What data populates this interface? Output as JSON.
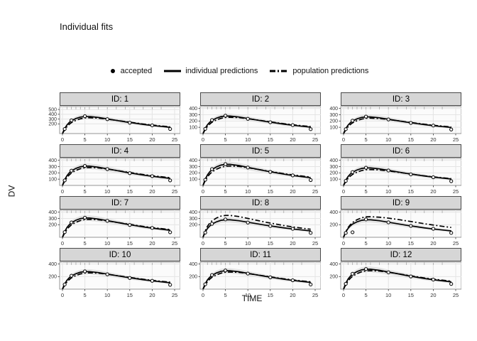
{
  "title": "Individual fits",
  "legend": {
    "accepted": "accepted",
    "individual": "individual predictions",
    "population": "population predictions"
  },
  "axes": {
    "x_label": "TIME",
    "y_label": "DV"
  },
  "colors": {
    "line": "#000000",
    "ribbon": "#dcdcdc",
    "strip_bg": "#d6d6d6",
    "grid": "#e4e4e4",
    "panel_bg": "#fbfbfb",
    "panel_border": "#8a8a8a"
  },
  "chart_data": {
    "type": "line",
    "title": "Individual fits",
    "xlabel": "TIME",
    "ylabel": "DV",
    "xlim": [
      0,
      25
    ],
    "xticks": [
      0,
      5,
      10,
      15,
      20,
      25
    ],
    "grid": true,
    "legend_position": "top",
    "t": [
      0,
      0.5,
      1,
      1.5,
      2,
      3,
      4,
      5,
      6,
      8,
      10,
      12,
      14,
      16,
      18,
      20,
      22,
      24
    ],
    "rug": [
      1,
      2,
      3,
      4,
      5,
      6,
      8,
      10,
      12,
      14,
      16,
      18,
      20,
      22
    ],
    "facets": [
      {
        "label": "ID: 1",
        "ylim": [
          0,
          560
        ],
        "yticks": [
          200,
          300,
          400,
          500
        ],
        "ind": [
          0,
          106,
          179,
          228,
          266,
          312,
          342,
          353,
          353,
          334,
          304,
          274,
          243,
          217,
          190,
          167,
          148,
          129
        ],
        "pop": [
          0,
          79,
          144,
          191,
          227,
          274,
          306,
          324,
          328,
          320,
          299,
          274,
          248,
          223,
          198,
          176,
          158,
          140
        ],
        "obs": [
          [
            0.5,
            95
          ],
          [
            2,
            275
          ],
          [
            5,
            360
          ],
          [
            10,
            298
          ],
          [
            15,
            225
          ],
          [
            20,
            170
          ],
          [
            24,
            95
          ]
        ]
      },
      {
        "label": "ID: 2",
        "ylim": [
          0,
          430
        ],
        "yticks": [
          100,
          200,
          300,
          400
        ],
        "ind": [
          0,
          84,
          141,
          180,
          210,
          246,
          270,
          279,
          279,
          264,
          240,
          216,
          192,
          171,
          150,
          132,
          117,
          102
        ],
        "pop": [
          0,
          63,
          114,
          151,
          180,
          217,
          242,
          257,
          259,
          254,
          237,
          217,
          197,
          177,
          157,
          140,
          125,
          111
        ],
        "obs": [
          [
            0.5,
            75
          ],
          [
            2,
            215
          ],
          [
            5,
            285
          ],
          [
            10,
            235
          ],
          [
            15,
            180
          ],
          [
            20,
            135
          ],
          [
            24,
            70
          ]
        ]
      },
      {
        "label": "ID: 3",
        "ylim": [
          0,
          430
        ],
        "yticks": [
          100,
          200,
          300,
          400
        ],
        "ind": [
          0,
          80,
          134,
          171,
          200,
          234,
          257,
          265,
          265,
          251,
          228,
          205,
          182,
          162,
          143,
          125,
          111,
          97
        ],
        "pop": [
          0,
          59,
          108,
          143,
          170,
          205,
          230,
          243,
          246,
          240,
          224,
          205,
          186,
          167,
          149,
          132,
          119,
          105
        ],
        "obs": [
          [
            0.5,
            70
          ],
          [
            2,
            205
          ],
          [
            5,
            270
          ],
          [
            10,
            225
          ],
          [
            15,
            170
          ],
          [
            20,
            128
          ],
          [
            24,
            65
          ]
        ]
      },
      {
        "label": "ID: 4",
        "ylim": [
          0,
          430
        ],
        "yticks": [
          100,
          200,
          300,
          400
        ],
        "ind": [
          0,
          92,
          155,
          198,
          231,
          271,
          297,
          307,
          307,
          290,
          264,
          238,
          211,
          188,
          165,
          145,
          129,
          112
        ],
        "pop": [
          0,
          69,
          126,
          166,
          198,
          239,
          267,
          283,
          285,
          279,
          261,
          239,
          217,
          195,
          173,
          154,
          139,
          123
        ],
        "obs": [
          [
            0.5,
            80
          ],
          [
            2,
            235
          ],
          [
            5,
            310
          ],
          [
            10,
            260
          ],
          [
            15,
            195
          ],
          [
            20,
            148
          ],
          [
            24,
            80
          ]
        ]
      },
      {
        "label": "ID: 5",
        "ylim": [
          0,
          430
        ],
        "yticks": [
          100,
          200,
          300,
          400
        ],
        "ind": [
          0,
          101,
          169,
          216,
          252,
          295,
          324,
          335,
          335,
          317,
          288,
          259,
          230,
          205,
          180,
          158,
          140,
          122
        ],
        "pop": [
          0,
          75,
          136,
          180,
          214,
          258,
          289,
          306,
          309,
          303,
          282,
          258,
          235,
          211,
          187,
          167,
          150,
          133
        ],
        "obs": [
          [
            0.5,
            90
          ],
          [
            2,
            260
          ],
          [
            5,
            340
          ],
          [
            10,
            285
          ],
          [
            15,
            215
          ],
          [
            20,
            160
          ],
          [
            24,
            85
          ]
        ]
      },
      {
        "label": "ID: 6",
        "ylim": [
          0,
          430
        ],
        "yticks": [
          100,
          200,
          300,
          400
        ],
        "ind": [
          0,
          84,
          141,
          180,
          210,
          246,
          270,
          279,
          279,
          264,
          240,
          216,
          192,
          171,
          150,
          132,
          117,
          102
        ],
        "pop": [
          0,
          61,
          111,
          147,
          175,
          211,
          236,
          250,
          253,
          247,
          231,
          211,
          192,
          172,
          153,
          136,
          122,
          108
        ],
        "obs": [
          [
            0.5,
            72
          ],
          [
            2,
            212
          ],
          [
            5,
            282
          ],
          [
            10,
            238
          ],
          [
            15,
            176
          ],
          [
            20,
            130
          ],
          [
            24,
            68
          ]
        ]
      },
      {
        "label": "ID: 7",
        "ylim": [
          0,
          430
        ],
        "yticks": [
          200,
          300,
          400
        ],
        "ind": [
          0,
          92,
          156,
          198,
          231,
          272,
          298,
          307,
          307,
          291,
          265,
          239,
          212,
          189,
          165,
          146,
          129,
          112
        ],
        "pop": [
          0,
          69,
          126,
          166,
          198,
          239,
          267,
          282,
          285,
          279,
          261,
          239,
          217,
          195,
          173,
          154,
          139,
          123
        ],
        "obs": [
          [
            0.5,
            82
          ],
          [
            2,
            237
          ],
          [
            5,
            312
          ],
          [
            10,
            262
          ],
          [
            15,
            196
          ],
          [
            20,
            149
          ],
          [
            24,
            80
          ]
        ]
      },
      {
        "label": "ID: 8",
        "ylim": [
          0,
          430
        ],
        "yticks": [
          200,
          300,
          400
        ],
        "ind": [
          0,
          84,
          141,
          180,
          210,
          246,
          270,
          279,
          279,
          264,
          240,
          216,
          192,
          171,
          150,
          132,
          117,
          102
        ],
        "pop": [
          0,
          105,
          176,
          225,
          262,
          307,
          337,
          348,
          348,
          330,
          300,
          270,
          240,
          214,
          187,
          165,
          146,
          128
        ],
        "obs": [
          [
            0.5,
            75
          ],
          [
            2,
            215
          ],
          [
            5,
            285
          ],
          [
            10,
            235
          ],
          [
            15,
            180
          ],
          [
            20,
            135
          ],
          [
            24,
            70
          ]
        ]
      },
      {
        "label": "ID: 9",
        "ylim": [
          0,
          430
        ],
        "yticks": [
          200,
          400
        ],
        "ind": [
          0,
          84,
          141,
          180,
          210,
          246,
          270,
          279,
          279,
          264,
          240,
          216,
          192,
          171,
          150,
          132,
          117,
          102
        ],
        "pop": [
          0,
          90,
          155,
          200,
          235,
          280,
          310,
          325,
          328,
          320,
          305,
          285,
          262,
          240,
          216,
          195,
          175,
          156
        ],
        "obs": [
          [
            0.5,
            70
          ],
          [
            2,
            80
          ],
          [
            5,
            285
          ],
          [
            10,
            238
          ],
          [
            15,
            182
          ],
          [
            20,
            136
          ],
          [
            24,
            70
          ]
        ]
      },
      {
        "label": "ID: 10",
        "ylim": [
          0,
          430
        ],
        "yticks": [
          200,
          400
        ],
        "ind": [
          0,
          84,
          141,
          180,
          210,
          246,
          270,
          279,
          279,
          264,
          240,
          216,
          192,
          171,
          150,
          132,
          117,
          102
        ],
        "pop": [
          0,
          63,
          114,
          151,
          180,
          217,
          242,
          257,
          259,
          254,
          237,
          217,
          197,
          177,
          157,
          140,
          125,
          111
        ],
        "obs": [
          [
            0.5,
            74
          ],
          [
            2,
            214
          ],
          [
            5,
            283
          ],
          [
            10,
            236
          ],
          [
            15,
            178
          ],
          [
            20,
            133
          ],
          [
            24,
            69
          ]
        ]
      },
      {
        "label": "ID: 11",
        "ylim": [
          0,
          430
        ],
        "yticks": [
          200,
          400
        ],
        "ind": [
          0,
          88,
          148,
          189,
          220,
          258,
          284,
          293,
          293,
          277,
          252,
          227,
          202,
          180,
          158,
          139,
          123,
          107
        ],
        "pop": [
          0,
          66,
          120,
          159,
          189,
          228,
          254,
          270,
          272,
          267,
          249,
          228,
          207,
          186,
          165,
          147,
          131,
          117
        ],
        "obs": [
          [
            0.5,
            78
          ],
          [
            2,
            225
          ],
          [
            5,
            298
          ],
          [
            10,
            248
          ],
          [
            15,
            188
          ],
          [
            20,
            141
          ],
          [
            24,
            74
          ]
        ]
      },
      {
        "label": "ID: 12",
        "ylim": [
          0,
          430
        ],
        "yticks": [
          200,
          400
        ],
        "ind": [
          0,
          95,
          160,
          204,
          238,
          280,
          307,
          317,
          317,
          300,
          273,
          246,
          218,
          194,
          170,
          150,
          133,
          116
        ],
        "pop": [
          0,
          71,
          130,
          172,
          204,
          247,
          276,
          291,
          294,
          288,
          269,
          247,
          224,
          201,
          178,
          159,
          143,
          127
        ],
        "obs": [
          [
            0.5,
            85
          ],
          [
            2,
            245
          ],
          [
            5,
            320
          ],
          [
            10,
            268
          ],
          [
            15,
            202
          ],
          [
            20,
            152
          ],
          [
            24,
            83
          ]
        ]
      }
    ]
  }
}
